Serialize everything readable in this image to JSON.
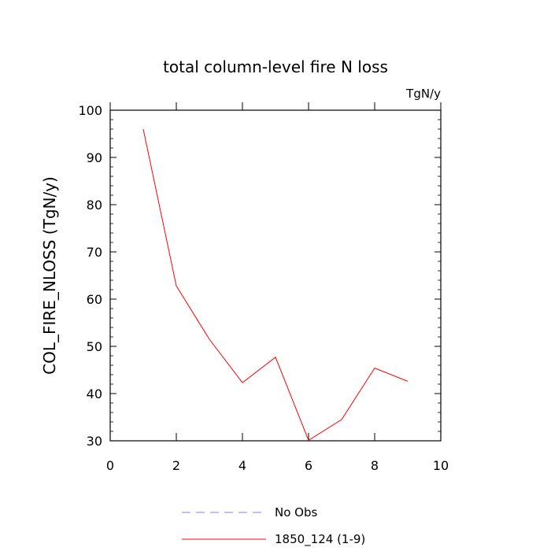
{
  "chart_data": {
    "type": "line",
    "title": "total column-level fire N loss",
    "units_label": "TgN/y",
    "ylabel": "COL_FIRE_NLOSS  (TgN/y)",
    "xlabel": "",
    "xlim": [
      0,
      10
    ],
    "ylim": [
      30,
      100
    ],
    "x_ticks": [
      0,
      2,
      4,
      6,
      8,
      10
    ],
    "y_ticks": [
      30,
      40,
      50,
      60,
      70,
      80,
      90,
      100
    ],
    "grid": false,
    "legend_position": "bottom",
    "legend": [
      {
        "label": "No Obs",
        "color": "#8080ff",
        "dashed": true
      },
      {
        "label": "1850_124 (1-9)",
        "color": "#ff0000",
        "dashed": false
      }
    ],
    "series": [
      {
        "name": "1850_124 (1-9)",
        "color": "#ff0000",
        "x": [
          1,
          2,
          3,
          4,
          5,
          6,
          7,
          8,
          9
        ],
        "values": [
          96.0,
          62.8,
          51.5,
          42.3,
          47.7,
          30.1,
          34.5,
          45.4,
          42.6
        ]
      }
    ]
  }
}
